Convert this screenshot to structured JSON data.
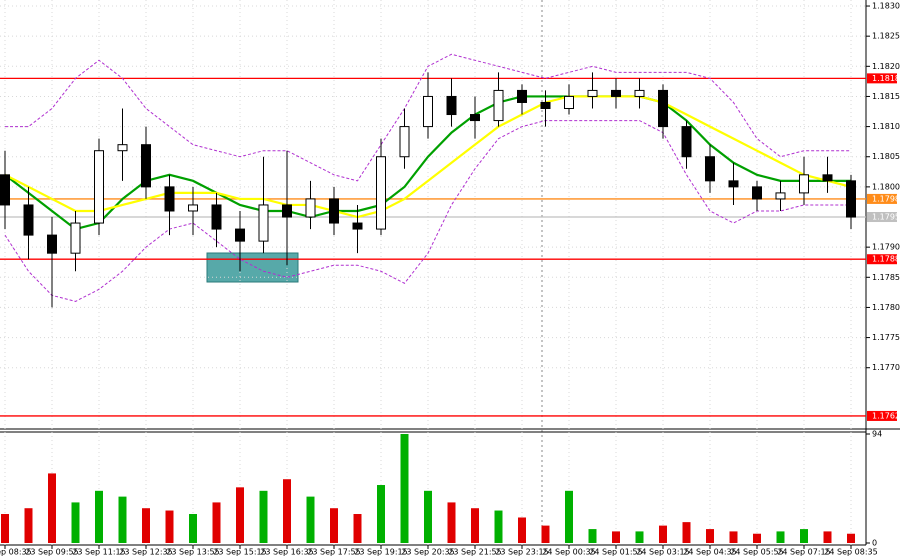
{
  "chart_data": {
    "type": "candlestick",
    "categories": [
      "23 Sep 08:35",
      null,
      "23 Sep 09:55",
      null,
      "23 Sep 11:15",
      null,
      "23 Sep 12:35",
      null,
      "23 Sep 13:55",
      null,
      "23 Sep 15:15",
      null,
      "23 Sep 16:35",
      null,
      "23 Sep 17:55",
      null,
      "23 Sep 19:15",
      null,
      "23 Sep 20:35",
      null,
      "23 Sep 21:55",
      null,
      "23 Sep 23:15",
      null,
      "24 Sep 00:35",
      null,
      "24 Sep 01:55",
      null,
      "24 Sep 03:15",
      null,
      "24 Sep 04:35",
      null,
      "24 Sep 05:55",
      null,
      "24 Sep 07:15",
      null,
      "24 Sep 08:35"
    ],
    "ohlc": [
      [
        1.1802,
        1.1806,
        1.1793,
        1.1797
      ],
      [
        1.1797,
        1.18,
        1.1788,
        1.1792
      ],
      [
        1.1792,
        1.1795,
        1.178,
        1.1789
      ],
      [
        1.1789,
        1.1796,
        1.1786,
        1.1794
      ],
      [
        1.1794,
        1.1808,
        1.1792,
        1.1806
      ],
      [
        1.1806,
        1.1813,
        1.1801,
        1.1807
      ],
      [
        1.1807,
        1.181,
        1.1798,
        1.18
      ],
      [
        1.18,
        1.1802,
        1.1792,
        1.1796
      ],
      [
        1.1796,
        1.18,
        1.1792,
        1.1797
      ],
      [
        1.1797,
        1.1799,
        1.179,
        1.1793
      ],
      [
        1.1793,
        1.1796,
        1.1786,
        1.1791
      ],
      [
        1.1791,
        1.1805,
        1.1789,
        1.1797
      ],
      [
        1.1797,
        1.1806,
        1.1787,
        1.1795
      ],
      [
        1.1795,
        1.1801,
        1.1793,
        1.1798
      ],
      [
        1.1798,
        1.18,
        1.1792,
        1.1794
      ],
      [
        1.1794,
        1.1797,
        1.1789,
        1.1793
      ],
      [
        1.1793,
        1.1808,
        1.1792,
        1.1805
      ],
      [
        1.1805,
        1.1813,
        1.1803,
        1.181
      ],
      [
        1.181,
        1.1819,
        1.1808,
        1.1815
      ],
      [
        1.1815,
        1.1818,
        1.181,
        1.1812
      ],
      [
        1.1812,
        1.1815,
        1.1808,
        1.1811
      ],
      [
        1.1811,
        1.1819,
        1.181,
        1.1816
      ],
      [
        1.1816,
        1.1817,
        1.1812,
        1.1814
      ],
      [
        1.1814,
        1.1816,
        1.181,
        1.1813
      ],
      [
        1.1813,
        1.1817,
        1.1812,
        1.1815
      ],
      [
        1.1815,
        1.1819,
        1.1813,
        1.1816
      ],
      [
        1.1816,
        1.1818,
        1.1813,
        1.1815
      ],
      [
        1.1815,
        1.1818,
        1.1813,
        1.1816
      ],
      [
        1.1816,
        1.1817,
        1.1808,
        1.181
      ],
      [
        1.181,
        1.1811,
        1.1803,
        1.1805
      ],
      [
        1.1805,
        1.1807,
        1.1799,
        1.1801
      ],
      [
        1.1801,
        1.1804,
        1.1797,
        1.18
      ],
      [
        1.18,
        1.1801,
        1.1796,
        1.1798
      ],
      [
        1.1798,
        1.1801,
        1.1796,
        1.1799
      ],
      [
        1.1799,
        1.1805,
        1.1797,
        1.1802
      ],
      [
        1.1802,
        1.1805,
        1.1799,
        1.1801
      ],
      [
        1.1801,
        1.1802,
        1.1793,
        1.1795
      ]
    ],
    "up_color": "#ffffff",
    "down_color": "#000000",
    "series": [
      {
        "color": "#00a000",
        "values": [
          1.1802,
          1.1799,
          1.1796,
          1.1793,
          1.1794,
          1.1798,
          1.1801,
          1.1802,
          1.1801,
          1.1799,
          1.1797,
          1.1796,
          1.1796,
          1.1795,
          1.1796,
          1.1796,
          1.1797,
          1.18,
          1.1805,
          1.1809,
          1.1812,
          1.1814,
          1.1815,
          1.1815,
          1.1815,
          1.1815,
          1.1815,
          1.1815,
          1.1814,
          1.1811,
          1.1807,
          1.1804,
          1.1802,
          1.1801,
          1.1801,
          1.1801,
          1.1801
        ]
      },
      {
        "color": "#ffff00",
        "values": [
          1.1802,
          1.18,
          1.1798,
          1.1796,
          1.1796,
          1.1797,
          1.1798,
          1.1799,
          1.1799,
          1.1799,
          1.1798,
          1.1798,
          1.1797,
          1.1797,
          1.1796,
          1.1795,
          1.1796,
          1.1798,
          1.1801,
          1.1804,
          1.1807,
          1.181,
          1.1812,
          1.1814,
          1.1815,
          1.1815,
          1.1815,
          1.1815,
          1.1814,
          1.1812,
          1.181,
          1.1808,
          1.1806,
          1.1804,
          1.1802,
          1.1801,
          1.18
        ]
      },
      {
        "color": "#b030d0",
        "dashed": true,
        "values": [
          1.181,
          1.181,
          1.1813,
          1.1818,
          1.1821,
          1.1818,
          1.1813,
          1.181,
          1.1807,
          1.1806,
          1.1805,
          1.1806,
          1.1806,
          1.1804,
          1.1802,
          1.1801,
          1.1807,
          1.1813,
          1.182,
          1.1822,
          1.1821,
          1.182,
          1.1819,
          1.1818,
          1.1819,
          1.182,
          1.1819,
          1.1819,
          1.1819,
          1.1819,
          1.1818,
          1.1814,
          1.1808,
          1.1805,
          1.1806,
          1.1806,
          1.1806
        ]
      },
      {
        "color": "#b030d0",
        "dashed": true,
        "values": [
          1.1792,
          1.1786,
          1.1782,
          1.1781,
          1.1783,
          1.1786,
          1.179,
          1.1793,
          1.1794,
          1.1791,
          1.1788,
          1.1786,
          1.1785,
          1.1786,
          1.1787,
          1.1787,
          1.1786,
          1.1784,
          1.1789,
          1.1797,
          1.1803,
          1.1808,
          1.181,
          1.1811,
          1.1811,
          1.1811,
          1.1811,
          1.1811,
          1.1809,
          1.1802,
          1.1796,
          1.1794,
          1.1796,
          1.1796,
          1.1797,
          1.1797,
          1.1797
        ]
      }
    ],
    "ylim": [
      1.176,
      1.1831
    ],
    "yticks": [
      {
        "value": 1.183,
        "label": "1.1830"
      },
      1.1825,
      {
        "value": 1.182,
        "label": "1.1820"
      },
      1.1815,
      {
        "value": 1.181,
        "label": "1.1810"
      },
      1.1805,
      {
        "value": 1.18,
        "label": "1.1800"
      },
      {
        "value": 1.179,
        "label": "1.1790"
      },
      1.1785,
      {
        "value": 1.178,
        "label": "1.1780"
      },
      1.1775,
      {
        "value": 1.177,
        "label": "1.1770"
      }
    ],
    "levels": [
      {
        "price": 1.1818,
        "color": "#ff0000"
      },
      {
        "price": 1.1798,
        "color": "#ff8c1a"
      },
      {
        "price": 1.1788,
        "color": "#ff0000"
      },
      {
        "price": 1.1762,
        "color": "#ff0000"
      },
      {
        "price": 1.1795,
        "color": "#c0c0c0"
      }
    ],
    "grid": true,
    "volume": {
      "values": [
        25,
        30,
        60,
        35,
        45,
        40,
        30,
        28,
        25,
        35,
        48,
        45,
        55,
        40,
        30,
        25,
        50,
        94,
        45,
        35,
        30,
        28,
        22,
        15,
        45,
        12,
        10,
        10,
        15,
        18,
        12,
        10,
        8,
        10,
        12,
        10,
        8
      ],
      "ylim": [
        0,
        94
      ],
      "yticks": [
        94,
        0
      ],
      "up_color": "#00b000",
      "down_color": "#e00000"
    }
  }
}
